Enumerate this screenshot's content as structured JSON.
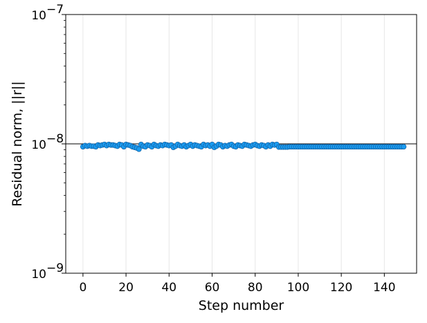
{
  "chart_data": {
    "type": "scatter",
    "xlabel": "Step number",
    "ylabel": "Residual norm, ||r||",
    "xlim": [
      -8,
      155
    ],
    "ylim": [
      1e-09,
      1e-07
    ],
    "yscale": "log",
    "grid": "vertical",
    "x_ticks": [
      0,
      20,
      40,
      60,
      80,
      100,
      120,
      140
    ],
    "x_tick_labels": [
      "0",
      "20",
      "40",
      "60",
      "80",
      "100",
      "120",
      "140"
    ],
    "y_ticks": [
      1e-09,
      1e-08,
      1e-07
    ],
    "y_tick_labels": [
      {
        "base": "10",
        "exp": "−9"
      },
      {
        "base": "10",
        "exp": "−8"
      },
      {
        "base": "10",
        "exp": "−7"
      }
    ],
    "reference_line": {
      "y": 1e-08,
      "color": "#000000"
    },
    "marker_color": "#1a9bf0",
    "marker_edge_color": "#1565a8",
    "series": [
      {
        "x": [
          0,
          1,
          2,
          3,
          4,
          5,
          6,
          7,
          8,
          9,
          10,
          11,
          12,
          13,
          14,
          15,
          16,
          17,
          18,
          19,
          20,
          21,
          22,
          23,
          24,
          25,
          26,
          27,
          28,
          29,
          30,
          31,
          32,
          33,
          34,
          35,
          36,
          37,
          38,
          39,
          40,
          41,
          42,
          43,
          44,
          45,
          46,
          47,
          48,
          49,
          50,
          51,
          52,
          53,
          54,
          55,
          56,
          57,
          58,
          59,
          60,
          61,
          62,
          63,
          64,
          65,
          66,
          67,
          68,
          69,
          70,
          71,
          72,
          73,
          74,
          75,
          76,
          77,
          78,
          79,
          80,
          81,
          82,
          83,
          84,
          85,
          86,
          87,
          88,
          89,
          90,
          91,
          92,
          93,
          94,
          95,
          96,
          97,
          98,
          99,
          100,
          101,
          102,
          103,
          104,
          105,
          106,
          107,
          108,
          109,
          110,
          111,
          112,
          113,
          114,
          115,
          116,
          117,
          118,
          119,
          120,
          121,
          122,
          123,
          124,
          125,
          126,
          127,
          128,
          129,
          130,
          131,
          132,
          133,
          134,
          135,
          136,
          137,
          138,
          139,
          140,
          141,
          142,
          143,
          144,
          145,
          146,
          147,
          148,
          149
        ],
        "y": [
          9.5e-09,
          9.7e-09,
          9.6e-09,
          9.7e-09,
          9.6e-09,
          9.6e-09,
          9.5e-09,
          9.8e-09,
          9.7e-09,
          9.8e-09,
          9.9e-09,
          9.7e-09,
          9.9e-09,
          9.8e-09,
          9.8e-09,
          9.7e-09,
          9.6e-09,
          9.9e-09,
          9.8e-09,
          9.5e-09,
          9.9e-09,
          9.8e-09,
          9.7e-09,
          9.5e-09,
          9.4e-09,
          9.3e-09,
          9.1e-09,
          9.9e-09,
          9.6e-09,
          9.5e-09,
          9.8e-09,
          9.7e-09,
          9.5e-09,
          9.9e-09,
          9.7e-09,
          9.6e-09,
          9.8e-09,
          9.7e-09,
          9.9e-09,
          9.8e-09,
          9.7e-09,
          9.8e-09,
          9.4e-09,
          9.6e-09,
          9.9e-09,
          9.7e-09,
          9.6e-09,
          9.8e-09,
          9.5e-09,
          9.7e-09,
          9.9e-09,
          9.6e-09,
          9.8e-09,
          9.7e-09,
          9.6e-09,
          9.5e-09,
          9.9e-09,
          9.7e-09,
          9.8e-09,
          9.6e-09,
          9.9e-09,
          9.4e-09,
          9.6e-09,
          9.9e-09,
          9.8e-09,
          9.5e-09,
          9.7e-09,
          9.6e-09,
          9.8e-09,
          9.9e-09,
          9.6e-09,
          9.5e-09,
          9.8e-09,
          9.7e-09,
          9.6e-09,
          9.9e-09,
          9.8e-09,
          9.7e-09,
          9.6e-09,
          9.8e-09,
          9.9e-09,
          9.7e-09,
          9.6e-09,
          9.8e-09,
          9.7e-09,
          9.5e-09,
          9.8e-09,
          9.6e-09,
          9.9e-09,
          9.8e-09,
          9.9e-09,
          9.45e-09,
          9.45e-09,
          9.45e-09,
          9.45e-09,
          9.45e-09,
          9.5e-09,
          9.5e-09,
          9.5e-09,
          9.5e-09,
          9.5e-09,
          9.5e-09,
          9.5e-09,
          9.5e-09,
          9.5e-09,
          9.5e-09,
          9.5e-09,
          9.5e-09,
          9.5e-09,
          9.5e-09,
          9.5e-09,
          9.5e-09,
          9.5e-09,
          9.5e-09,
          9.5e-09,
          9.5e-09,
          9.5e-09,
          9.5e-09,
          9.5e-09,
          9.5e-09,
          9.5e-09,
          9.5e-09,
          9.5e-09,
          9.5e-09,
          9.5e-09,
          9.5e-09,
          9.5e-09,
          9.5e-09,
          9.5e-09,
          9.5e-09,
          9.5e-09,
          9.5e-09,
          9.5e-09,
          9.5e-09,
          9.5e-09,
          9.5e-09,
          9.5e-09,
          9.5e-09,
          9.5e-09,
          9.5e-09,
          9.5e-09,
          9.5e-09,
          9.5e-09,
          9.5e-09,
          9.5e-09,
          9.5e-09,
          9.5e-09,
          9.5e-09,
          9.5e-09,
          9.5e-09
        ]
      }
    ]
  }
}
